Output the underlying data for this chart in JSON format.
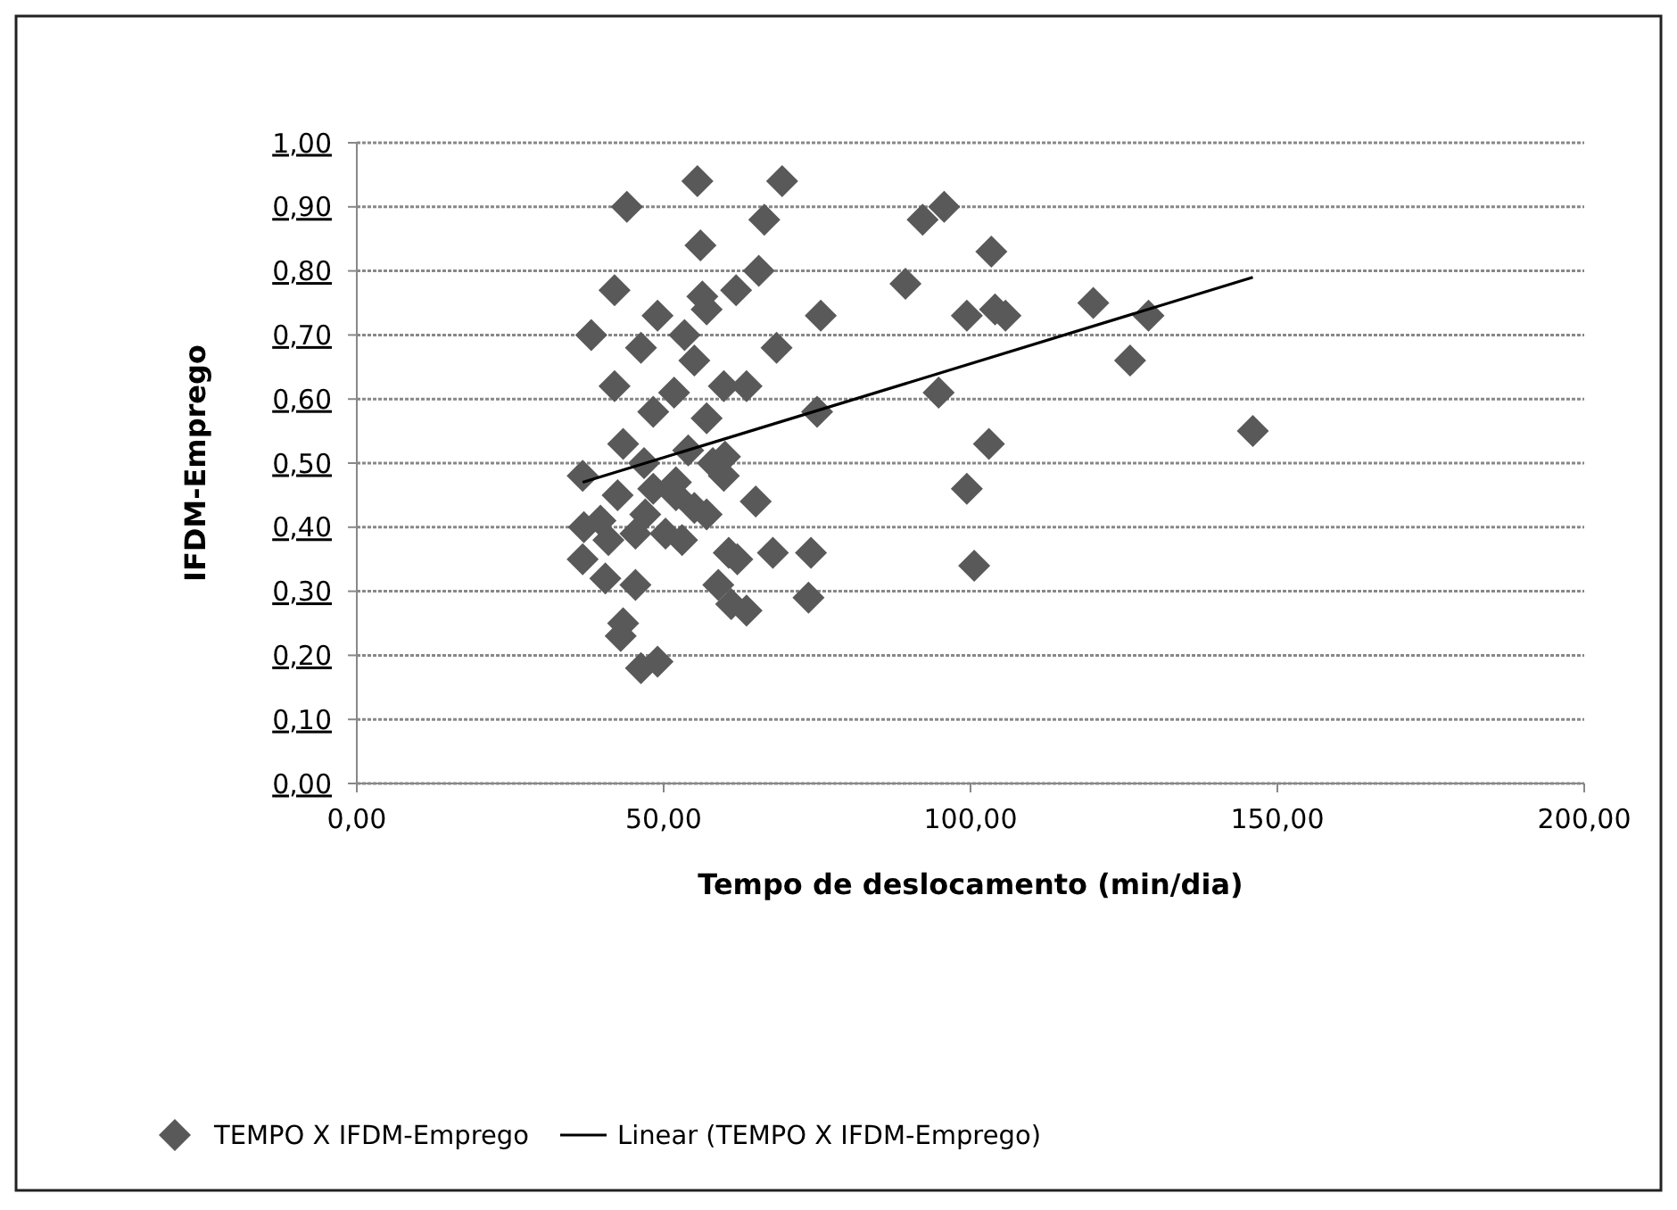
{
  "chart_data": {
    "type": "scatter",
    "xlabel": "Tempo de deslocamento  (min/dia)",
    "ylabel": "IFDM-Emprego",
    "xlim": [
      0,
      200
    ],
    "ylim": [
      0,
      1
    ],
    "xticks": [
      {
        "value": 0,
        "label": "0,00"
      },
      {
        "value": 50,
        "label": "50,00"
      },
      {
        "value": 100,
        "label": "100,00"
      },
      {
        "value": 150,
        "label": "150,00"
      },
      {
        "value": 200,
        "label": "200,00"
      }
    ],
    "yticks": [
      {
        "value": 0,
        "label": "0,00"
      },
      {
        "value": 0.1,
        "label": "0,10"
      },
      {
        "value": 0.2,
        "label": "0,20"
      },
      {
        "value": 0.3,
        "label": "0,30"
      },
      {
        "value": 0.4,
        "label": "0,40"
      },
      {
        "value": 0.5,
        "label": "0,50"
      },
      {
        "value": 0.6,
        "label": "0,60"
      },
      {
        "value": 0.7,
        "label": "0,70"
      },
      {
        "value": 0.8,
        "label": "0,80"
      },
      {
        "value": 0.9,
        "label": "0,90"
      },
      {
        "value": 1,
        "label": "1,00"
      }
    ],
    "grid": "y",
    "legend": "bottom",
    "series": [
      {
        "name": "TEMPO X IFDM-Emprego",
        "marker": "diamond",
        "color": "#595959",
        "x": [
          55.5,
          69.3,
          44,
          66.4,
          56,
          42,
          56.3,
          61.8,
          65.5,
          49,
          57,
          38.2,
          53.4,
          75.6,
          46.3,
          68.4,
          55,
          42,
          59.8,
          63.5,
          51.7,
          48.3,
          57,
          75,
          43.4,
          36.8,
          46.8,
          59.8,
          48.3,
          42.5,
          52,
          65,
          39.7,
          45.4,
          50.3,
          53,
          36.8,
          40.5,
          45.4,
          60.6,
          67.8,
          74,
          58.9,
          63.5,
          73.6,
          43.4,
          43,
          46.3,
          49,
          55,
          37,
          41,
          47,
          52,
          57,
          60,
          58,
          54,
          62,
          61,
          92.2,
          95.7,
          103.4,
          89.4,
          99.4,
          105.7,
          104,
          120,
          129,
          126,
          94.8,
          103,
          146,
          99.4,
          100.6
        ],
        "values": [
          0.94,
          0.94,
          0.9,
          0.88,
          0.84,
          0.77,
          0.76,
          0.77,
          0.8,
          0.73,
          0.74,
          0.7,
          0.7,
          0.73,
          0.68,
          0.68,
          0.66,
          0.62,
          0.62,
          0.62,
          0.61,
          0.58,
          0.57,
          0.58,
          0.53,
          0.48,
          0.5,
          0.48,
          0.46,
          0.45,
          0.45,
          0.44,
          0.41,
          0.39,
          0.39,
          0.38,
          0.35,
          0.32,
          0.31,
          0.36,
          0.36,
          0.36,
          0.31,
          0.27,
          0.29,
          0.25,
          0.23,
          0.18,
          0.19,
          0.43,
          0.4,
          0.38,
          0.42,
          0.47,
          0.42,
          0.51,
          0.5,
          0.52,
          0.35,
          0.28,
          0.88,
          0.9,
          0.83,
          0.78,
          0.73,
          0.73,
          0.74,
          0.75,
          0.73,
          0.66,
          0.61,
          0.53,
          0.55,
          0.46,
          0.34
        ]
      },
      {
        "name": "Linear (TEMPO X IFDM-Emprego)",
        "type": "line",
        "marker": "none",
        "line_style": "solid",
        "color": "#000000",
        "x": [
          36.8,
          146
        ],
        "values": [
          0.47,
          0.79
        ]
      }
    ]
  }
}
